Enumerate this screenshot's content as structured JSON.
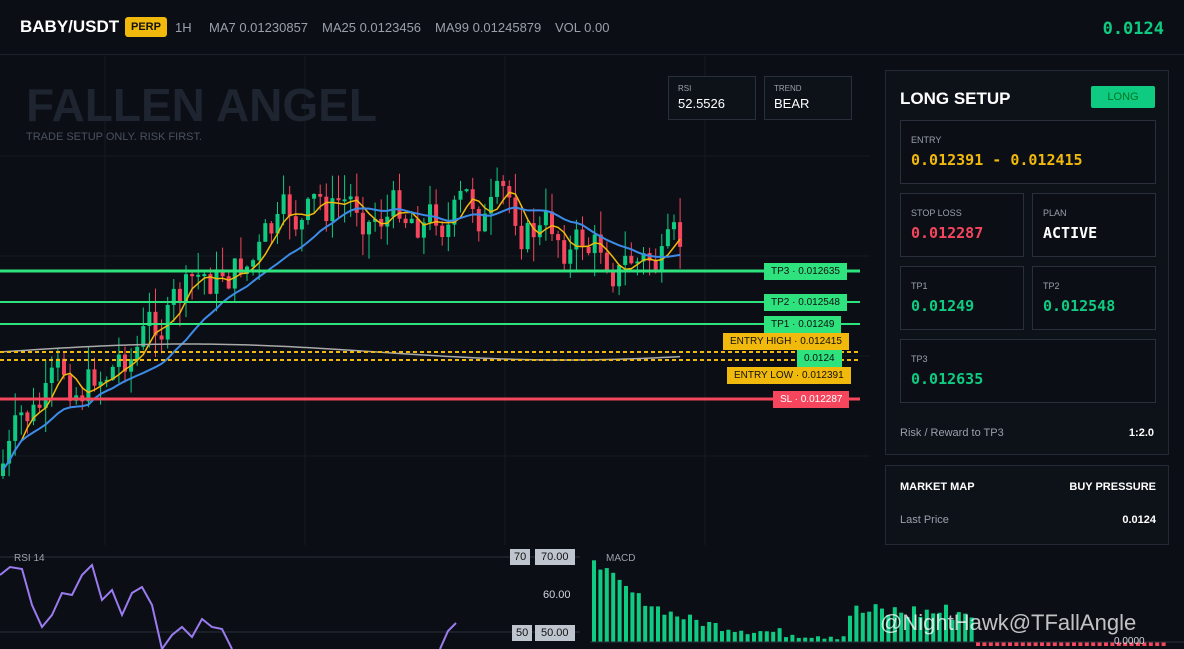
{
  "header": {
    "symbol": "BABY/USDT",
    "badge": "PERP",
    "interval": "1H",
    "ma7": "MA7 0.01230857",
    "ma25": "MA25 0.0123456",
    "ma99": "MA99 0.01245879",
    "vol": "VOL 0.00",
    "price": "0.0124"
  },
  "chart": {
    "watermark": "FALLEN ANGEL",
    "tagline": "TRADE SETUP ONLY. RISK FIRST.",
    "stats": [
      {
        "label": "RSI",
        "value": "52.5526"
      },
      {
        "label": "TREND",
        "value": "BEAR"
      }
    ],
    "levels": {
      "tp3": "TP3 · 0.012635",
      "tp2": "TP2 · 0.012548",
      "tp1": "TP1 · 0.01249",
      "entry_high": "ENTRY HIGH · 0.012415",
      "last": "0.0124",
      "entry_low": "ENTRY LOW · 0.012391",
      "sl": "SL · 0.012287"
    }
  },
  "setup": {
    "title": "LONG SETUP",
    "badge": "LONG",
    "entry": {
      "label": "ENTRY",
      "value": "0.012391 - 0.012415"
    },
    "stop_loss": {
      "label": "STOP LOSS",
      "value": "0.012287"
    },
    "plan": {
      "label": "PLAN",
      "value": "ACTIVE"
    },
    "tp1": {
      "label": "TP1",
      "value": "0.01249"
    },
    "tp2": {
      "label": "TP2",
      "value": "0.012548"
    },
    "tp3": {
      "label": "TP3",
      "value": "0.012635"
    },
    "rr_label": "Risk / Reward to TP3",
    "rr_value": "1:2.0"
  },
  "market": {
    "title": "MARKET MAP",
    "status": "BUY PRESSURE",
    "last_label": "Last Price",
    "last_value": "0.0124"
  },
  "rsi_panel": {
    "title": "RSI 14",
    "l70_tag": "70",
    "l70": "70.00",
    "l60": "60.00",
    "l50_tag": "50",
    "l50": "50.00"
  },
  "macd_panel": {
    "title": "MACD",
    "zero": "0.0000"
  },
  "overlay": "@NightHawk@TFallAngle"
}
